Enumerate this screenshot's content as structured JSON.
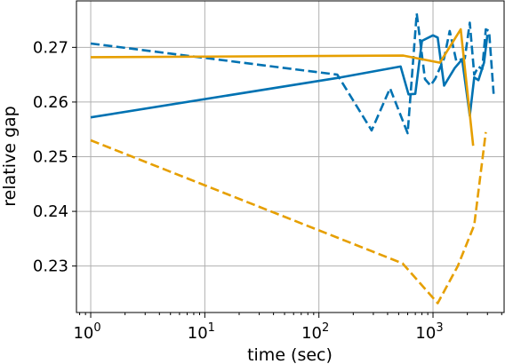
{
  "chart_data": {
    "type": "line",
    "xlabel": "time (sec)",
    "ylabel": "relative gap",
    "xscale": "log",
    "xlim": [
      0.75,
      4200
    ],
    "ylim": [
      0.2215,
      0.2785
    ],
    "grid": true,
    "major_x_ticks": [
      {
        "value": 1,
        "base": "10",
        "exp": "0"
      },
      {
        "value": 10,
        "base": "10",
        "exp": "1"
      },
      {
        "value": 100,
        "base": "10",
        "exp": "2"
      },
      {
        "value": 1000,
        "base": "10",
        "exp": "3"
      }
    ],
    "y_ticks": [
      {
        "value": 0.23,
        "label": "0.23"
      },
      {
        "value": 0.24,
        "label": "0.24"
      },
      {
        "value": 0.25,
        "label": "0.25"
      },
      {
        "value": 0.26,
        "label": "0.26"
      },
      {
        "value": 0.27,
        "label": "0.27"
      }
    ],
    "series": [
      {
        "color": "#0072b2",
        "dash": "solid",
        "points": [
          [
            1,
            0.2572
          ],
          [
            145,
            0.2644
          ],
          [
            520,
            0.2665
          ],
          [
            610,
            0.2614
          ],
          [
            700,
            0.2615
          ],
          [
            800,
            0.2712
          ],
          [
            1000,
            0.2722
          ],
          [
            1100,
            0.2718
          ],
          [
            1250,
            0.263
          ],
          [
            1550,
            0.2662
          ],
          [
            1800,
            0.2678
          ],
          [
            2100,
            0.2575
          ],
          [
            2300,
            0.2645
          ],
          [
            2500,
            0.264
          ],
          [
            2800,
            0.2672
          ],
          [
            3000,
            0.2723
          ]
        ]
      },
      {
        "color": "#0072b2",
        "dash": "dashed",
        "points": [
          [
            1,
            0.2707
          ],
          [
            145,
            0.265
          ],
          [
            290,
            0.2548
          ],
          [
            420,
            0.2625
          ],
          [
            600,
            0.2543
          ],
          [
            720,
            0.2762
          ],
          [
            850,
            0.2642
          ],
          [
            950,
            0.263
          ],
          [
            1050,
            0.2643
          ],
          [
            1250,
            0.268
          ],
          [
            1400,
            0.273
          ],
          [
            1600,
            0.2675
          ],
          [
            1900,
            0.268
          ],
          [
            2100,
            0.2745
          ],
          [
            2300,
            0.265
          ],
          [
            2500,
            0.2665
          ],
          [
            2700,
            0.266
          ],
          [
            2900,
            0.2733
          ],
          [
            3100,
            0.273
          ],
          [
            3400,
            0.2615
          ]
        ]
      },
      {
        "color": "#e69f00",
        "dash": "solid",
        "points": [
          [
            1,
            0.2682
          ],
          [
            550,
            0.2685
          ],
          [
            1150,
            0.2672
          ],
          [
            1750,
            0.2733
          ],
          [
            2250,
            0.252
          ]
        ]
      },
      {
        "color": "#e69f00",
        "dash": "dashed",
        "points": [
          [
            1,
            0.253
          ],
          [
            540,
            0.2305
          ],
          [
            1100,
            0.2232
          ],
          [
            1650,
            0.23
          ],
          [
            2300,
            0.2375
          ],
          [
            2900,
            0.2545
          ]
        ]
      }
    ]
  }
}
